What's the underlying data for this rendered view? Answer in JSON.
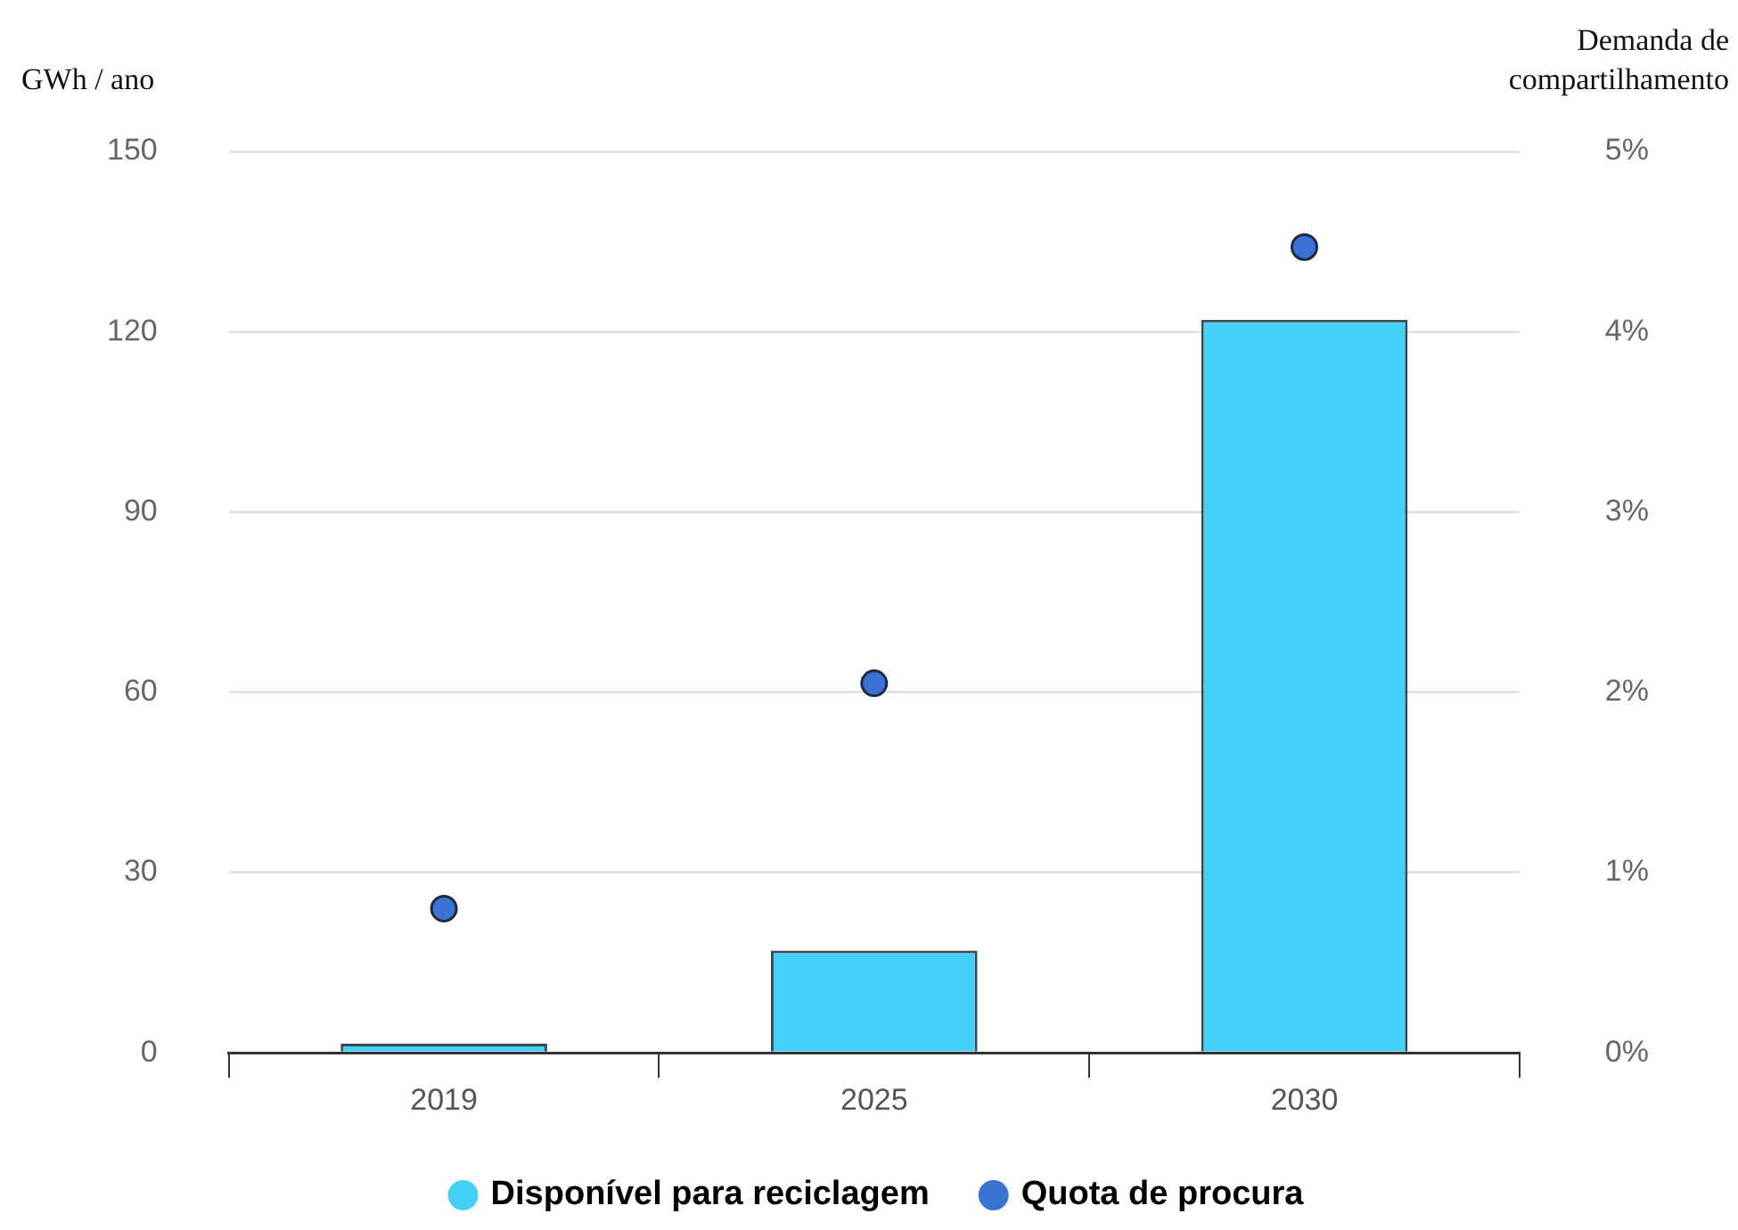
{
  "chart_data": {
    "type": "bar",
    "categories": [
      "2019",
      "2025",
      "2030"
    ],
    "series": [
      {
        "name": "Disponível para reciclagem",
        "color": "#45d0fa",
        "values": [
          1.5,
          17,
          122
        ]
      },
      {
        "name": "Quota de procura",
        "type": "scatter",
        "axis": "y2",
        "color": "#3b73d3",
        "values": [
          0.8,
          2.05,
          4.47
        ]
      }
    ],
    "ylabel": "GWh / ano",
    "y2label": "Demanda de compartilhamento",
    "ylim": [
      0,
      150
    ],
    "yticks": [
      0,
      30,
      60,
      90,
      120,
      150
    ],
    "y2lim": [
      0,
      5
    ],
    "y2ticks": [
      {
        "value": 0,
        "label": "0%"
      },
      {
        "value": 1,
        "label": "1%"
      },
      {
        "value": 2,
        "label": "2%"
      },
      {
        "value": 3,
        "label": "3%"
      },
      {
        "value": 4,
        "label": "4%"
      },
      {
        "value": 5,
        "label": "5%"
      }
    ],
    "grid": "y",
    "legend": "bottom",
    "marker": "circle"
  }
}
